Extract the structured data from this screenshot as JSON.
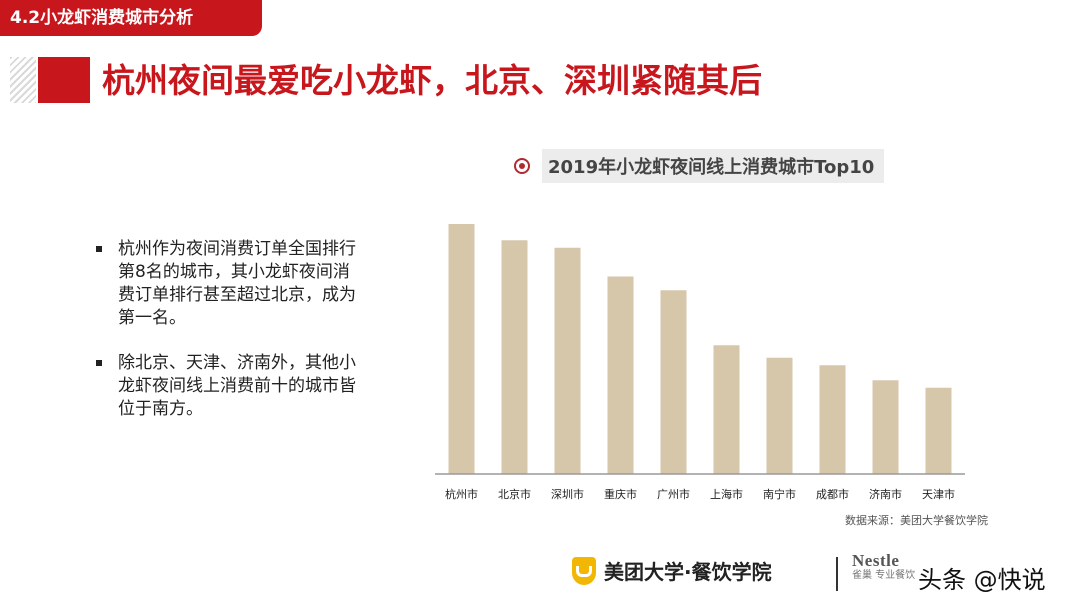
{
  "section_tag": "4.2小龙虾消费城市分析",
  "headline": "杭州夜间最爱吃小龙虾，北京、深圳紧随其后",
  "bullets": [
    "杭州作为夜间消费订单全国排行第8名的城市，其小龙虾夜间消费订单排行甚至超过北京，成为第一名。",
    "除北京、天津、济南外，其他小龙虾夜间线上消费前十的城市皆位于南方。"
  ],
  "footer": {
    "brand": "美团大学·餐饮学院",
    "partner_name": "Nestle",
    "partner_sub": "雀巢 专业餐饮",
    "watermark": "头条 @快说"
  },
  "colors": {
    "accent": "#c8161d",
    "bar": "#d6c7ab",
    "axis": "#9a9a9a"
  },
  "chart_data": {
    "type": "bar",
    "title": "2019年小龙虾夜间线上消费城市Top10",
    "categories": [
      "杭州市",
      "北京市",
      "深圳市",
      "重庆市",
      "广州市",
      "上海市",
      "南宁市",
      "成都市",
      "济南市",
      "天津市"
    ],
    "values": [
      100,
      93.5,
      90.5,
      79,
      73.5,
      51.5,
      46.5,
      43.5,
      37.5,
      34.5
    ],
    "ylim": [
      0,
      100
    ],
    "xlabel": "",
    "ylabel": "",
    "grid": false,
    "legend": "none",
    "source": "数据来源：美团大学餐饮学院"
  }
}
